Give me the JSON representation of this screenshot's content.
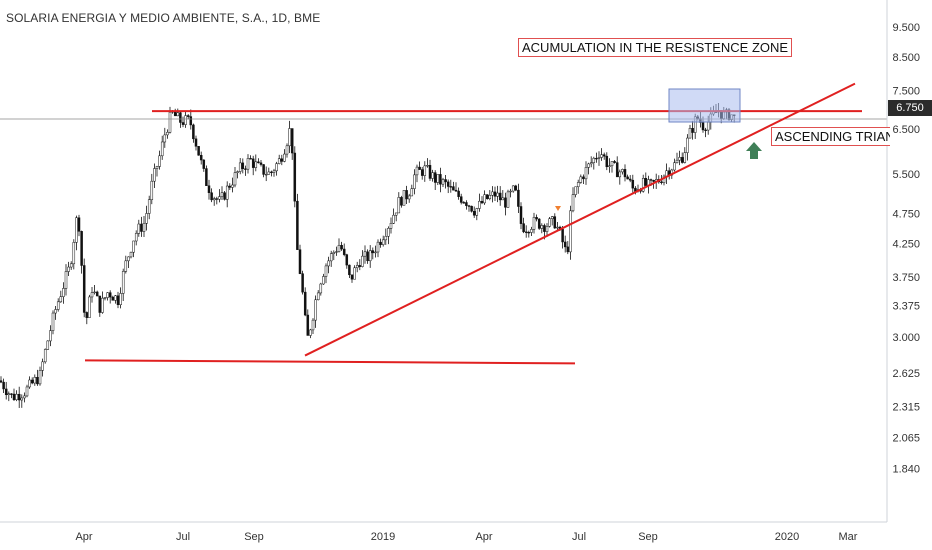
{
  "header": {
    "title": "SOLARIA ENERGIA Y MEDIO AMBIENTE, S.A., 1D, BME"
  },
  "annotations": {
    "resistance_text": "ACUMULATION IN THE RESISTENCE ZONE",
    "triangle_text": "ASCENDING TRIANGLE"
  },
  "last_price": "6.750",
  "colors": {
    "trendline": "#e02020",
    "candle": "#111111",
    "arrow": "#3f7f57",
    "box": "#aabbee"
  },
  "chart_data": {
    "type": "candlestick",
    "title": "SOLARIA ENERGIA Y MEDIO AMBIENTE, S.A., 1D, BME",
    "x_tick_labels": [
      "Apr",
      "Jul",
      "Sep",
      "2019",
      "Apr",
      "Jul",
      "Sep",
      "2020",
      "Mar"
    ],
    "y_tick_labels": [
      "9.500",
      "8.500",
      "7.500",
      "6.500",
      "5.500",
      "4.750",
      "4.250",
      "3.750",
      "3.375",
      "3.000",
      "2.625",
      "2.315",
      "2.065",
      "1.840"
    ],
    "y_scale": "log",
    "ylim": [
      1.6,
      10.2
    ],
    "last_value": 6.75,
    "close_path": [
      [
        0,
        2.55
      ],
      [
        12,
        2.4
      ],
      [
        25,
        2.45
      ],
      [
        40,
        2.6
      ],
      [
        55,
        3.3
      ],
      [
        70,
        3.9
      ],
      [
        78,
        4.8
      ],
      [
        85,
        3.1
      ],
      [
        92,
        3.6
      ],
      [
        100,
        3.35
      ],
      [
        108,
        3.55
      ],
      [
        118,
        3.45
      ],
      [
        125,
        3.9
      ],
      [
        135,
        4.4
      ],
      [
        145,
        4.6
      ],
      [
        152,
        5.3
      ],
      [
        160,
        5.9
      ],
      [
        165,
        6.4
      ],
      [
        172,
        6.9
      ],
      [
        180,
        6.7
      ],
      [
        190,
        6.7
      ],
      [
        198,
        6.0
      ],
      [
        205,
        5.4
      ],
      [
        212,
        5.1
      ],
      [
        220,
        4.95
      ],
      [
        230,
        5.3
      ],
      [
        240,
        5.6
      ],
      [
        250,
        5.8
      ],
      [
        260,
        5.6
      ],
      [
        270,
        5.5
      ],
      [
        280,
        5.8
      ],
      [
        288,
        6.3
      ],
      [
        291,
        6.6
      ],
      [
        296,
        4.3
      ],
      [
        302,
        3.6
      ],
      [
        307,
        2.95
      ],
      [
        312,
        3.2
      ],
      [
        318,
        3.6
      ],
      [
        325,
        3.9
      ],
      [
        333,
        4.1
      ],
      [
        340,
        4.25
      ],
      [
        350,
        3.7
      ],
      [
        360,
        4.0
      ],
      [
        370,
        4.05
      ],
      [
        380,
        4.3
      ],
      [
        390,
        4.6
      ],
      [
        400,
        5.0
      ],
      [
        408,
        5.1
      ],
      [
        415,
        5.5
      ],
      [
        425,
        5.6
      ],
      [
        435,
        5.4
      ],
      [
        445,
        5.3
      ],
      [
        455,
        5.1
      ],
      [
        465,
        5.0
      ],
      [
        475,
        4.8
      ],
      [
        485,
        5.0
      ],
      [
        495,
        5.1
      ],
      [
        505,
        4.95
      ],
      [
        515,
        5.2
      ],
      [
        520,
        4.6
      ],
      [
        525,
        4.5
      ],
      [
        535,
        4.6
      ],
      [
        545,
        4.55
      ],
      [
        555,
        4.6
      ],
      [
        562,
        4.3
      ],
      [
        567,
        4.05
      ],
      [
        572,
        5.0
      ],
      [
        580,
        5.4
      ],
      [
        590,
        5.7
      ],
      [
        600,
        6.0
      ],
      [
        608,
        5.7
      ],
      [
        615,
        5.6
      ],
      [
        625,
        5.5
      ],
      [
        633,
        5.2
      ],
      [
        642,
        5.3
      ],
      [
        650,
        5.25
      ],
      [
        660,
        5.4
      ],
      [
        668,
        5.6
      ],
      [
        675,
        5.7
      ],
      [
        683,
        5.9
      ],
      [
        690,
        6.4
      ],
      [
        697,
        6.8
      ],
      [
        703,
        6.6
      ],
      [
        710,
        6.7
      ],
      [
        718,
        7.0
      ],
      [
        725,
        6.8
      ],
      [
        730,
        6.9
      ],
      [
        735,
        6.75
      ]
    ],
    "trendlines": [
      {
        "name": "resistance",
        "from": [
          152,
          6.95
        ],
        "to": [
          862,
          6.95
        ]
      },
      {
        "name": "support",
        "from": [
          85,
          2.75
        ],
        "to": [
          575,
          2.72
        ]
      },
      {
        "name": "ascending",
        "from": [
          305,
          2.8
        ],
        "to": [
          855,
          7.7
        ]
      }
    ],
    "grid": false,
    "legend": "none"
  }
}
